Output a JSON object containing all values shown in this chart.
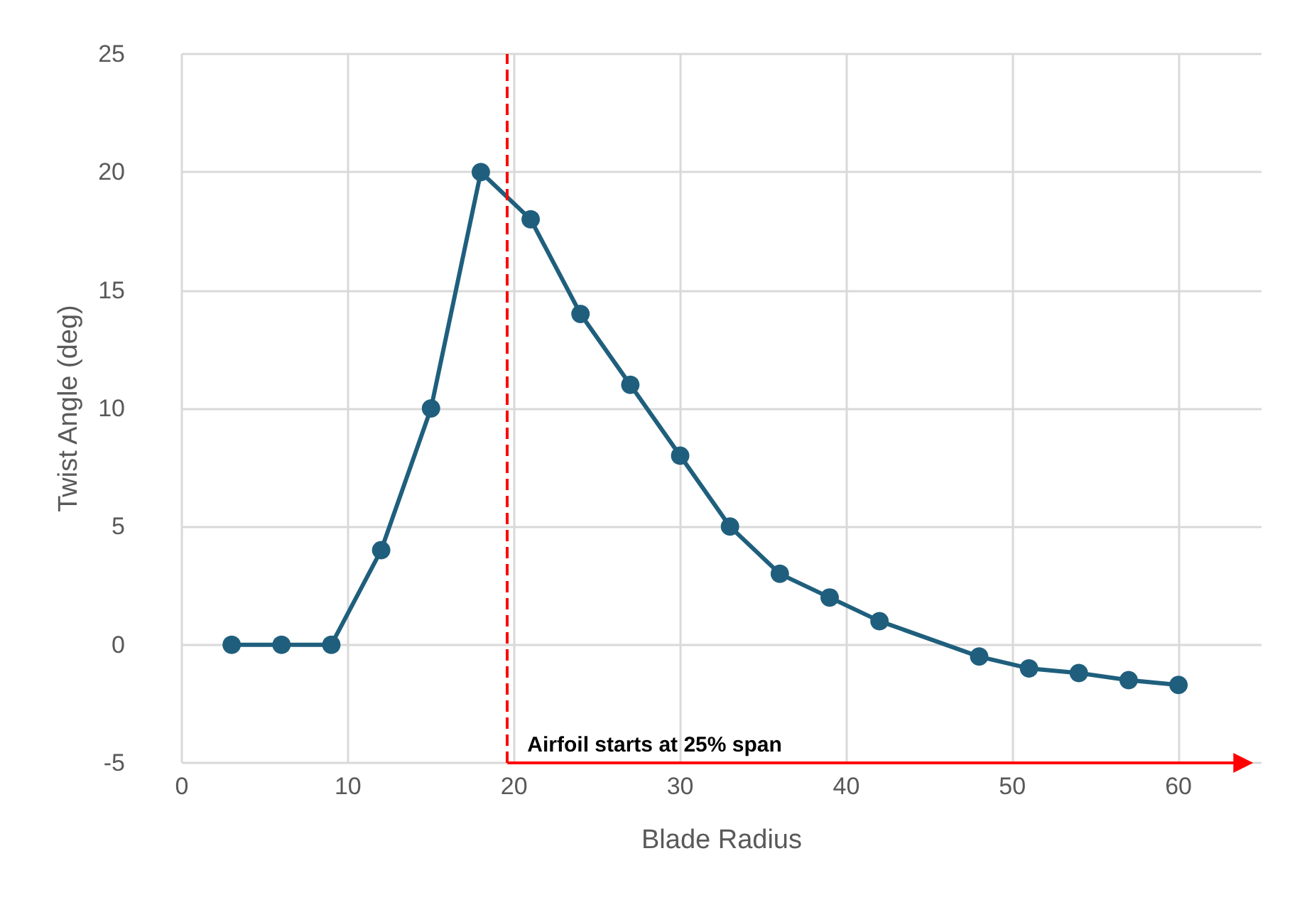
{
  "chart_data": {
    "type": "line",
    "xlabel": "Blade Radius",
    "ylabel": "Twist Angle (deg)",
    "x": [
      3,
      6,
      9,
      12,
      15,
      18,
      21,
      24,
      27,
      30,
      33,
      36,
      39,
      42,
      48,
      51,
      54,
      57,
      60
    ],
    "series": [
      {
        "color": "#1f5f7d",
        "values": [
          0,
          0,
          0,
          4,
          10,
          20,
          18,
          14,
          11,
          8,
          5,
          3,
          2,
          1,
          -0.5,
          -1,
          -1.2,
          -1.5,
          -1.7
        ]
      }
    ],
    "xlim": [
      0,
      65
    ],
    "xticks": [
      0,
      10,
      20,
      30,
      40,
      50,
      60
    ],
    "ylim": [
      -5,
      25
    ],
    "yticks": [
      -5,
      0,
      5,
      10,
      15,
      20,
      25
    ],
    "grid": true,
    "marker": "circle",
    "line_style": "solid",
    "ref_lines": [
      {
        "axis": "x",
        "value": 19.6,
        "color": "#ff0000",
        "line_style": "dashed"
      }
    ],
    "annotations": [
      {
        "text": "Airfoil starts at 25% span",
        "x": 19.6,
        "y": -5
      }
    ]
  }
}
